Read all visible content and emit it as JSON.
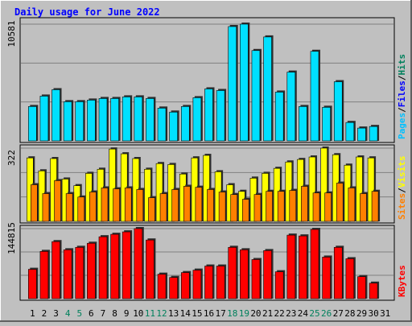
{
  "chart_data": [
    {
      "type": "bar",
      "title": "Daily usage for June 2022",
      "categories": [
        "1",
        "2",
        "3",
        "4",
        "5",
        "6",
        "7",
        "8",
        "9",
        "10",
        "11",
        "12",
        "13",
        "14",
        "15",
        "16",
        "17",
        "18",
        "19",
        "20",
        "21",
        "22",
        "23",
        "24",
        "25",
        "26",
        "27",
        "28",
        "29",
        "30",
        "31"
      ],
      "category_colors": [
        "#000000",
        "#000000",
        "#000000",
        "#00805c",
        "#00805c",
        "#000000",
        "#000000",
        "#000000",
        "#000000",
        "#000000",
        "#00805c",
        "#00805c",
        "#000000",
        "#000000",
        "#000000",
        "#000000",
        "#000000",
        "#00805c",
        "#00805c",
        "#000000",
        "#000000",
        "#000000",
        "#000000",
        "#000000",
        "#00805c",
        "#00805c",
        "#000000",
        "#000000",
        "#000000",
        "#000000",
        "#000000"
      ],
      "legend": [
        {
          "name": "Pages",
          "color": "#00c0ff"
        },
        {
          "name": "Files",
          "color": "#0000ff"
        },
        {
          "name": "Hits",
          "color": "#00805c"
        }
      ],
      "legend_separator": "/",
      "series": [
        {
          "color": "#00e0ff",
          "values": [
            3116,
            4058,
            4638,
            3551,
            3551,
            3696,
            3841,
            3841,
            3986,
            3986,
            3841,
            2971,
            2609,
            3116,
            3913,
            4711,
            4565,
            10364,
            10581,
            8189,
            9421,
            4421,
            6232,
            3116,
            8117,
            3044,
            5363,
            1667,
            1160,
            1304,
            null
          ]
        }
      ],
      "ylim": [
        0,
        10581
      ],
      "yticks": [
        10581
      ]
    },
    {
      "type": "bar",
      "legend": [
        {
          "name": "Sites",
          "color": "#ff8000"
        },
        {
          "name": "Visits",
          "color": "#ffff00"
        }
      ],
      "legend_separator": "/",
      "series": [
        {
          "color": "#ffff00",
          "values": [
            279,
            222,
            276,
            186,
            157,
            211,
            229,
            318,
            297,
            276,
            229,
            254,
            250,
            208,
            279,
            290,
            218,
            161,
            132,
            190,
            211,
            233,
            261,
            272,
            283,
            322,
            293,
            247,
            283,
            279,
            null
          ]
        },
        {
          "color": "#ff8000",
          "values": [
            161,
            122,
            179,
            122,
            107,
            129,
            147,
            143,
            147,
            140,
            104,
            122,
            140,
            154,
            150,
            140,
            129,
            118,
            97,
            118,
            132,
            132,
            136,
            154,
            125,
            125,
            168,
            147,
            122,
            132,
            null
          ]
        }
      ],
      "ylim": [
        0,
        322
      ],
      "yticks": [
        322
      ]
    },
    {
      "type": "bar",
      "legend": [
        {
          "name": "KBytes",
          "color": "#ff0000"
        }
      ],
      "series": [
        {
          "color": "#ff0000",
          "values": [
            60620,
            97665,
            117870,
            101033,
            106085,
            114504,
            127975,
            133027,
            138079,
            144815,
            121239,
            50517,
            43781,
            53885,
            58936,
            67356,
            67356,
            106085,
            101033,
            80827,
            99349,
            55568,
            131343,
            129659,
            143131,
            85878,
            106085,
            82511,
            45465,
            31994,
            null
          ]
        }
      ],
      "ylim": [
        0,
        144815
      ],
      "yticks": [
        144815
      ]
    }
  ]
}
